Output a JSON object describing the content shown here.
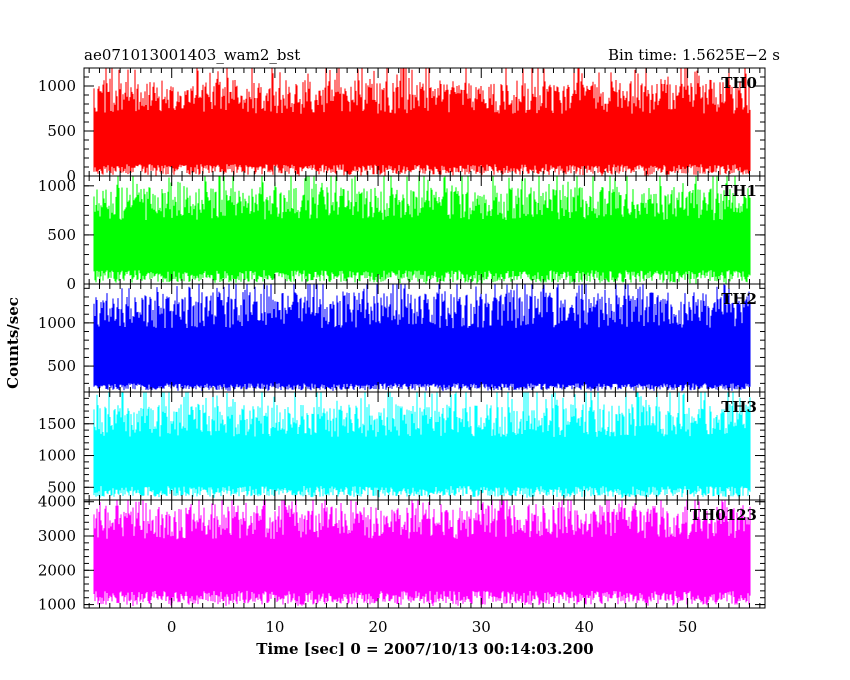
{
  "chart_data": {
    "type": "line",
    "title_left": "ae071013001403_wam2_bst",
    "title_right": "Bin time: 1.5625E−2 s",
    "xlabel": "Time [sec] 0 = 2007/10/13 00:14:03.200",
    "ylabel": "Counts/sec",
    "xlim": [
      -8.5,
      57.5
    ],
    "x_ticks": [
      0,
      10,
      20,
      30,
      40,
      50
    ],
    "x_tick_labels": [
      "0",
      "10",
      "20",
      "30",
      "40",
      "50"
    ],
    "data_x_range": [
      -7.5,
      56.0
    ],
    "grid": false,
    "panels": [
      {
        "name": "TH0",
        "color": "#ff0000",
        "ylim": [
          0,
          1200
        ],
        "y_ticks": [
          0,
          500,
          1000
        ],
        "y_tick_labels": [
          "0",
          "500",
          "1000"
        ],
        "base_level": 420,
        "low_level": 130,
        "high_level": 880,
        "max_level": 1200,
        "min_level": 0
      },
      {
        "name": "TH1",
        "color": "#00ff00",
        "ylim": [
          0,
          1100
        ],
        "y_ticks": [
          0,
          500,
          1000
        ],
        "y_tick_labels": [
          "0",
          "500",
          "1000"
        ],
        "base_level": 420,
        "low_level": 140,
        "high_level": 820,
        "max_level": 1100,
        "min_level": 0
      },
      {
        "name": "TH2",
        "color": "#0000ff",
        "ylim": [
          200,
          1450
        ],
        "y_ticks": [
          500,
          1000
        ],
        "y_tick_labels": [
          "500",
          "1000"
        ],
        "base_level": 700,
        "low_level": 300,
        "high_level": 1150,
        "max_level": 1450,
        "min_level": 210
      },
      {
        "name": "TH3",
        "color": "#00ffff",
        "ylim": [
          300,
          2000
        ],
        "y_ticks": [
          500,
          1000,
          1500
        ],
        "y_tick_labels": [
          "500",
          "1000",
          "1500"
        ],
        "base_level": 1000,
        "low_level": 520,
        "high_level": 1550,
        "max_level": 2000,
        "min_level": 330
      },
      {
        "name": "TH0123",
        "color": "#ff00ff",
        "ylim": [
          900,
          4050
        ],
        "y_ticks": [
          1000,
          2000,
          3000,
          4000
        ],
        "y_tick_labels": [
          "1000",
          "2000",
          "3000",
          "4000"
        ],
        "base_level": 2300,
        "low_level": 1400,
        "high_level": 3400,
        "max_level": 4050,
        "min_level": 950
      }
    ]
  }
}
